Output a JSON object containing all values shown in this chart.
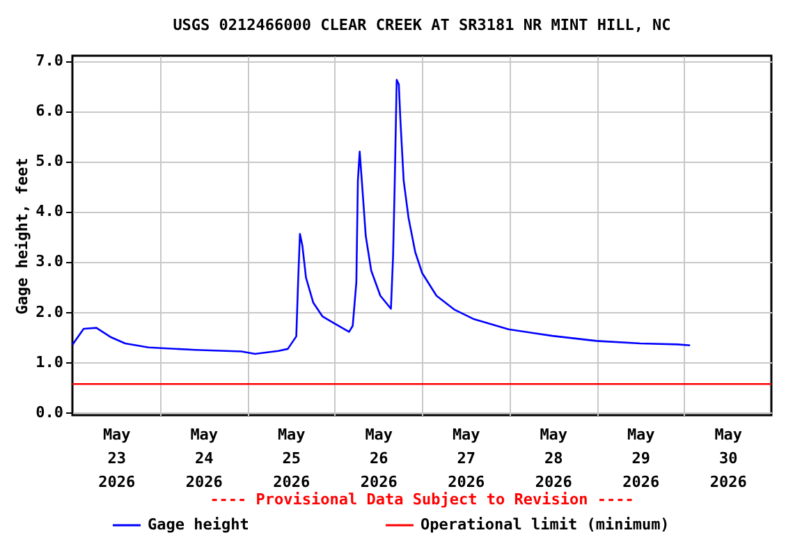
{
  "chart_data": {
    "type": "line",
    "title": "USGS 0212466000 CLEAR CREEK AT SR3181 NR MINT HILL, NC",
    "ylabel": "Gage height, feet",
    "annotations": [
      "---- Provisional Data Subject to Revision ----"
    ],
    "x": [
      "2026-05-23T00:00",
      "2026-05-23T03:05",
      "2026-05-23T06:35",
      "2026-05-23T10:40",
      "2026-05-23T14:30",
      "2026-05-23T20:55",
      "2026-05-24T09:40",
      "2026-05-24T22:25",
      "2026-05-25T02:10",
      "2026-05-25T08:35",
      "2026-05-25T11:10",
      "2026-05-25T13:30",
      "2026-05-25T14:00",
      "2026-05-25T14:30",
      "2026-05-25T15:10",
      "2026-05-25T16:10",
      "2026-05-25T18:10",
      "2026-05-25T20:40",
      "2026-05-25T23:55",
      "2026-05-26T04:00",
      "2026-05-26T05:00",
      "2026-05-26T06:00",
      "2026-05-26T06:25",
      "2026-05-26T06:55",
      "2026-05-26T07:30",
      "2026-05-26T08:35",
      "2026-05-26T10:05",
      "2026-05-26T12:35",
      "2026-05-26T15:30",
      "2026-05-26T16:05",
      "2026-05-26T16:30",
      "2026-05-26T17:05",
      "2026-05-26T17:40",
      "2026-05-26T18:05",
      "2026-05-26T19:00",
      "2026-05-26T20:20",
      "2026-05-26T22:10",
      "2026-05-27T00:05",
      "2026-05-27T04:00",
      "2026-05-27T09:00",
      "2026-05-27T14:05",
      "2026-05-27T23:50",
      "2026-05-28T11:50",
      "2026-05-28T23:55",
      "2026-05-29T12:00",
      "2026-05-29T22:10",
      "2026-05-30T01:40"
    ],
    "series": [
      {
        "name": "Gage height",
        "color": "#0000ff",
        "values": [
          1.34,
          1.66,
          1.68,
          1.49,
          1.37,
          1.29,
          1.24,
          1.21,
          1.16,
          1.22,
          1.26,
          1.51,
          2.59,
          3.55,
          3.32,
          2.68,
          2.18,
          1.91,
          1.77,
          1.6,
          1.72,
          2.59,
          4.61,
          5.19,
          4.61,
          3.51,
          2.82,
          2.32,
          2.06,
          3.1,
          4.42,
          6.62,
          6.53,
          5.84,
          4.61,
          3.87,
          3.19,
          2.77,
          2.32,
          2.04,
          1.86,
          1.65,
          1.52,
          1.42,
          1.37,
          1.35,
          1.33
        ]
      }
    ],
    "ref_lines": [
      {
        "axis": "y",
        "value": 0.56,
        "label": "Operational limit (minimum)",
        "color": "#ff0000"
      }
    ],
    "xlim": [
      "2026-05-23T00:00",
      "2026-05-31T00:00"
    ],
    "xticks": [
      {
        "value": "2026-05-23T12:00",
        "label": "May\n23\n2026"
      },
      {
        "value": "2026-05-24T00:00",
        "label": null
      },
      {
        "value": "2026-05-24T12:00",
        "label": "May\n24\n2026"
      },
      {
        "value": "2026-05-25T00:00",
        "label": null
      },
      {
        "value": "2026-05-25T12:00",
        "label": "May\n25\n2026"
      },
      {
        "value": "2026-05-26T00:00",
        "label": null
      },
      {
        "value": "2026-05-26T12:00",
        "label": "May\n26\n2026"
      },
      {
        "value": "2026-05-27T00:00",
        "label": null
      },
      {
        "value": "2026-05-27T12:00",
        "label": "May\n27\n2026"
      },
      {
        "value": "2026-05-28T00:00",
        "label": null
      },
      {
        "value": "2026-05-28T12:00",
        "label": "May\n28\n2026"
      },
      {
        "value": "2026-05-29T00:00",
        "label": null
      },
      {
        "value": "2026-05-29T12:00",
        "label": "May\n29\n2026"
      },
      {
        "value": "2026-05-30T00:00",
        "label": null
      },
      {
        "value": "2026-05-30T12:00",
        "label": "May\n30\n2026"
      }
    ],
    "ylim": [
      -0.06,
      7.1
    ],
    "yticks": [
      {
        "value": 0,
        "label": "0.0"
      },
      {
        "value": 1,
        "label": "1.0"
      },
      {
        "value": 2,
        "label": "2.0"
      },
      {
        "value": 3,
        "label": "3.0"
      },
      {
        "value": 4,
        "label": "4.0"
      },
      {
        "value": 5,
        "label": "5.0"
      },
      {
        "value": 6,
        "label": "6.0"
      },
      {
        "value": 7,
        "label": "7.0"
      }
    ],
    "grid": true,
    "legend": "bottom",
    "marker": "none",
    "line_style": "solid"
  }
}
